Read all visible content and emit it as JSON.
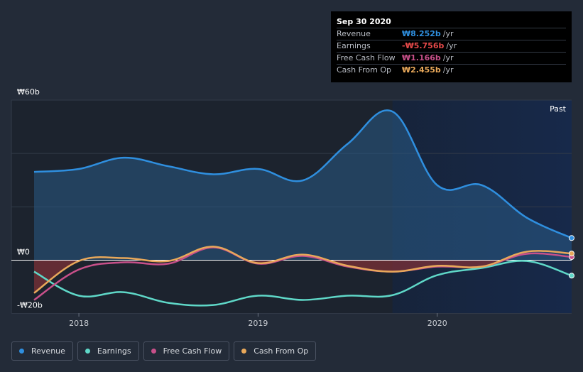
{
  "tooltip": {
    "date": "Sep 30 2020",
    "rows": [
      {
        "label": "Revenue",
        "value": "₩8.252b",
        "unit": "/yr",
        "color": "#2f8fdf"
      },
      {
        "label": "Earnings",
        "value": "-₩5.756b",
        "unit": "/yr",
        "color": "#e84a4a"
      },
      {
        "label": "Free Cash Flow",
        "value": "₩1.166b",
        "unit": "/yr",
        "color": "#c8508a"
      },
      {
        "label": "Cash From Op",
        "value": "₩2.455b",
        "unit": "/yr",
        "color": "#e8a85a"
      }
    ]
  },
  "legend": [
    {
      "label": "Revenue",
      "color": "#2f8fdf"
    },
    {
      "label": "Earnings",
      "color": "#5fd8c8"
    },
    {
      "label": "Free Cash Flow",
      "color": "#c8508a"
    },
    {
      "label": "Cash From Op",
      "color": "#e8a85a"
    }
  ],
  "chart_data": {
    "type": "area",
    "title": "",
    "xlabel": "",
    "ylabel": "",
    "ylim": [
      -20,
      60
    ],
    "xlim": [
      2017.75,
      2020.75
    ],
    "ytick_labels": [
      {
        "value": 60,
        "label": "₩60b"
      },
      {
        "value": 0,
        "label": "₩0"
      },
      {
        "value": -20,
        "label": "-₩20b"
      }
    ],
    "xtick_labels": [
      {
        "value": 2018.0,
        "label": "2018"
      },
      {
        "value": 2019.0,
        "label": "2019"
      },
      {
        "value": 2020.0,
        "label": "2020"
      }
    ],
    "past_label": "Past",
    "past_start": 2019.75,
    "series": [
      {
        "name": "Revenue",
        "color": "#2f8fdf",
        "x": [
          2017.75,
          2018.0,
          2018.25,
          2018.5,
          2018.75,
          2019.0,
          2019.25,
          2019.5,
          2019.75,
          2020.0,
          2020.25,
          2020.5,
          2020.75
        ],
        "y": [
          33.1,
          34.2,
          38.4,
          35.2,
          32.2,
          34.2,
          29.9,
          43.6,
          55.7,
          28.1,
          28.1,
          15.9,
          8.3
        ]
      },
      {
        "name": "Earnings",
        "color": "#5fd8c8",
        "x": [
          2017.75,
          2018.0,
          2018.25,
          2018.5,
          2018.75,
          2019.0,
          2019.25,
          2019.5,
          2019.75,
          2020.0,
          2020.25,
          2020.5,
          2020.75
        ],
        "y": [
          -4.3,
          -13.3,
          -12.0,
          -16.0,
          -16.8,
          -13.3,
          -14.9,
          -13.3,
          -13.1,
          -5.6,
          -2.9,
          -0.3,
          -5.8
        ]
      },
      {
        "name": "Free Cash Flow",
        "color": "#c8508a",
        "x": [
          2017.75,
          2018.0,
          2018.25,
          2018.5,
          2018.75,
          2019.0,
          2019.25,
          2019.5,
          2019.75,
          2020.0,
          2020.25,
          2020.5,
          2020.75
        ],
        "y": [
          -14.9,
          -3.5,
          -0.8,
          -1.3,
          4.8,
          -1.3,
          1.6,
          -2.4,
          -4.3,
          -2.4,
          -2.4,
          2.4,
          1.2
        ]
      },
      {
        "name": "Cash From Op",
        "color": "#e8a85a",
        "x": [
          2017.75,
          2018.0,
          2018.25,
          2018.5,
          2018.75,
          2019.0,
          2019.25,
          2019.5,
          2019.75,
          2020.0,
          2020.25,
          2020.5,
          2020.75
        ],
        "y": [
          -12.3,
          -0.3,
          0.8,
          -0.3,
          5.1,
          -1.1,
          2.1,
          -2.1,
          -4.3,
          -2.1,
          -2.4,
          3.2,
          2.5
        ]
      }
    ]
  }
}
